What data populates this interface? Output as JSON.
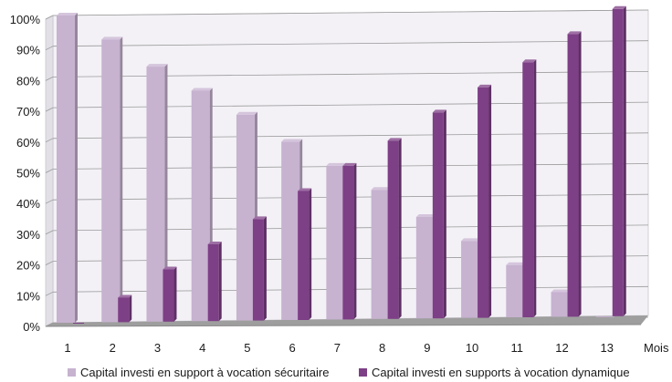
{
  "chart_data": {
    "type": "bar",
    "categories": [
      "1",
      "2",
      "3",
      "4",
      "5",
      "6",
      "7",
      "8",
      "9",
      "10",
      "11",
      "12",
      "13"
    ],
    "series": [
      {
        "name": "Capital investi en support à vocation sécuritaire",
        "color": "#c7b2d0",
        "values": [
          100,
          92,
          83,
          75,
          67,
          58,
          50,
          42,
          33,
          25,
          17,
          8,
          0
        ]
      },
      {
        "name": "Capital investi en supports à vocation dynamique",
        "color": "#7d3f86",
        "values": [
          0,
          8,
          17,
          25,
          33,
          42,
          50,
          58,
          67,
          75,
          83,
          92,
          100
        ]
      }
    ],
    "xlabel": "Mois",
    "ylabel": "",
    "ylim": [
      0,
      100
    ],
    "yticks": [
      "0%",
      "10%",
      "20%",
      "30%",
      "40%",
      "50%",
      "60%",
      "70%",
      "80%",
      "90%",
      "100%"
    ],
    "grid": true,
    "legend": "bottom",
    "style": "3d"
  }
}
